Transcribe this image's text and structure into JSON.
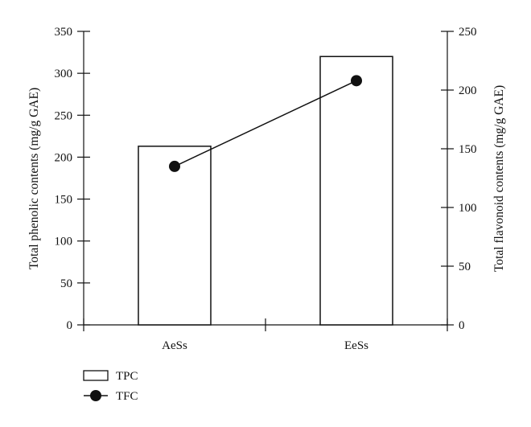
{
  "chart_data": {
    "type": "bar",
    "categories": [
      "AeSs",
      "EeSs"
    ],
    "series": [
      {
        "name": "TPC",
        "type": "bar",
        "axis": "left",
        "values": [
          213,
          320
        ]
      },
      {
        "name": "TFC",
        "type": "line",
        "axis": "right",
        "values": [
          135,
          208
        ]
      }
    ],
    "ylabel": "Total phenolic contents (mg/g GAE)",
    "y2label": "Total flavonoid contents (mg/g GAE)",
    "ylim": [
      0,
      350
    ],
    "y2lim": [
      0,
      250
    ],
    "yticks": [
      0,
      50,
      100,
      150,
      200,
      250,
      300,
      350
    ],
    "y2ticks": [
      0,
      50,
      100,
      150,
      200,
      250
    ],
    "grid": false,
    "legend": "bottom-left"
  },
  "colors": {
    "ink": "#111111",
    "bar_fill": "#ffffff"
  }
}
